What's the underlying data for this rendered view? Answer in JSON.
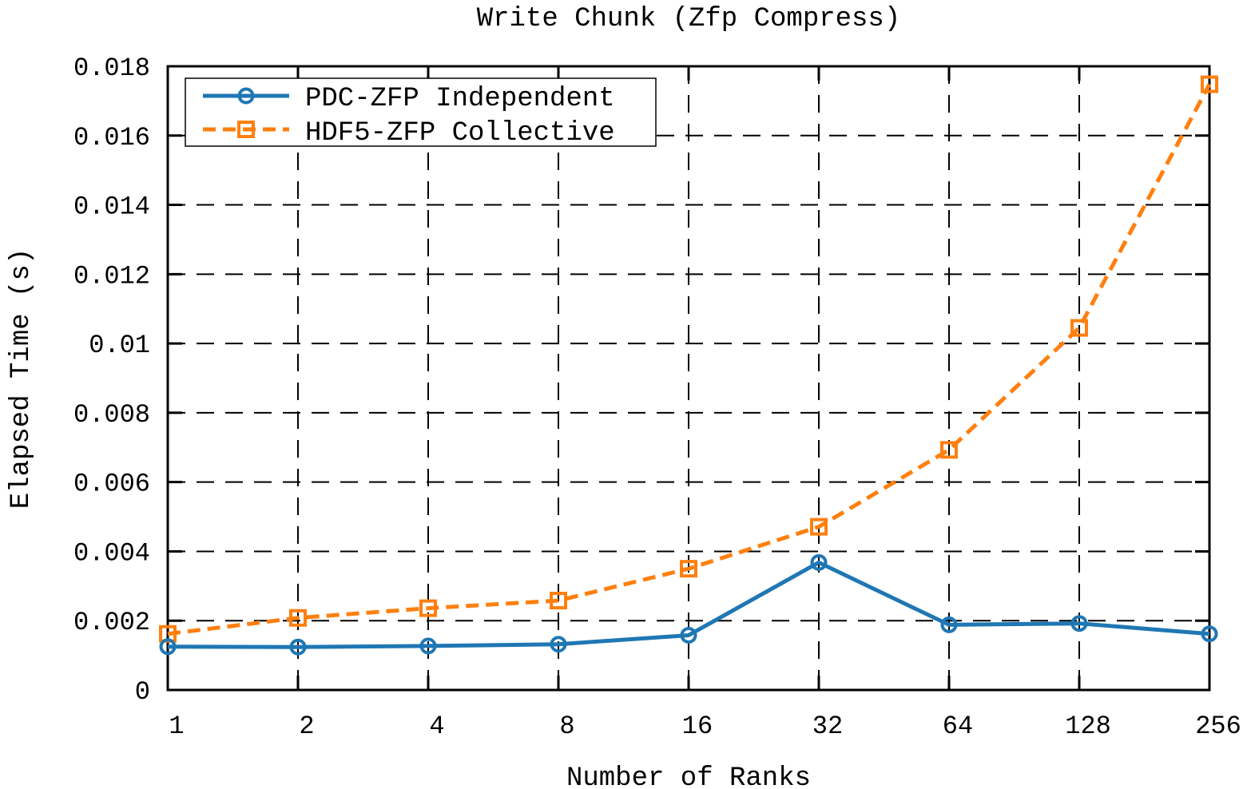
{
  "chart_data": {
    "type": "line",
    "title": "Write Chunk (Zfp Compress)",
    "xlabel": "Number of Ranks",
    "ylabel": "Elapsed Time (s)",
    "x_scale": "log2",
    "categories": [
      "1",
      "2",
      "4",
      "8",
      "16",
      "32",
      "64",
      "128",
      "256"
    ],
    "ylim": [
      0,
      0.018
    ],
    "yticks": [
      0,
      0.002,
      0.004,
      0.006,
      0.008,
      0.01,
      0.012,
      0.014,
      0.016,
      0.018
    ],
    "ytick_labels": [
      "0",
      "0.002",
      "0.004",
      "0.006",
      "0.008",
      "0.01",
      "0.012",
      "0.014",
      "0.016",
      "0.018"
    ],
    "grid": true,
    "legend_position": "top-left",
    "series": [
      {
        "name": "PDC-ZFP Independent",
        "color": "#1f77b4",
        "marker": "circle",
        "line_style": "solid",
        "values": [
          0.00125,
          0.00124,
          0.00127,
          0.00132,
          0.00158,
          0.00368,
          0.00188,
          0.00192,
          0.00162
        ]
      },
      {
        "name": "HDF5-ZFP Collective",
        "color": "#ff7f0e",
        "marker": "square",
        "line_style": "dashed",
        "values": [
          0.00162,
          0.00208,
          0.00236,
          0.00258,
          0.0035,
          0.00471,
          0.00693,
          0.01045,
          0.01748
        ]
      }
    ]
  }
}
